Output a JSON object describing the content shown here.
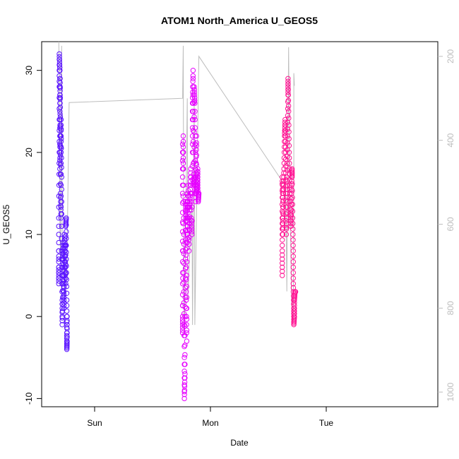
{
  "chart_data": {
    "type": "scatter",
    "title": "ATOM1 North_America U_GEOS5",
    "xlabel": "Date",
    "ylabel": "U_GEOS5",
    "x_ticks": [
      "Sun",
      "Mon",
      "Tue"
    ],
    "y_ticks": [
      "-10",
      "0",
      "10",
      "20",
      "30"
    ],
    "ylim": [
      -11,
      33.5
    ],
    "right_axis": {
      "ticks": [
        "200",
        "400",
        "600",
        "800",
        "1000"
      ],
      "range": [
        165,
        1035
      ],
      "inverted": true
    },
    "grid": false,
    "marker": "open-circle",
    "color_scale": [
      "#5a14ff",
      "#e600ff",
      "#ff1493"
    ],
    "series": [
      {
        "color": "#5a14ff",
        "points": [
          [
            -1.31,
            8
          ],
          [
            -1.31,
            4
          ],
          [
            -1.31,
            6
          ],
          [
            -1.31,
            12
          ],
          [
            -1.305,
            20
          ],
          [
            -1.305,
            28
          ],
          [
            -1.305,
            32
          ],
          [
            -1.3,
            30
          ],
          [
            -1.3,
            24
          ],
          [
            -1.3,
            18
          ],
          [
            -1.298,
            26
          ],
          [
            -1.298,
            29
          ],
          [
            -1.295,
            22
          ],
          [
            -1.295,
            15
          ],
          [
            -1.29,
            12
          ],
          [
            -1.29,
            20
          ],
          [
            -1.29,
            24
          ],
          [
            -1.285,
            17
          ],
          [
            -1.285,
            8
          ],
          [
            -1.28,
            2
          ],
          [
            -1.28,
            -1
          ],
          [
            -1.275,
            4
          ],
          [
            -1.275,
            7
          ],
          [
            -1.27,
            9
          ],
          [
            -1.27,
            5
          ],
          [
            -1.265,
            1
          ],
          [
            -1.265,
            3
          ],
          [
            -1.26,
            6
          ],
          [
            -1.26,
            10
          ],
          [
            -1.255,
            8
          ],
          [
            -1.25,
            4
          ],
          [
            -1.25,
            11
          ],
          [
            -1.245,
            12
          ],
          [
            -1.245,
            7
          ],
          [
            -1.24,
            2
          ],
          [
            -1.24,
            -2
          ],
          [
            -1.24,
            -4
          ],
          [
            -1.238,
            -3
          ],
          [
            -1.238,
            0
          ]
        ]
      },
      {
        "color": "#e600ff",
        "points": [
          [
            -0.24,
            21
          ],
          [
            -0.24,
            15
          ],
          [
            -0.24,
            8
          ],
          [
            -0.24,
            0
          ],
          [
            -0.24,
            -2
          ],
          [
            -0.235,
            18
          ],
          [
            -0.235,
            22
          ],
          [
            -0.23,
            10
          ],
          [
            -0.23,
            3
          ],
          [
            -0.225,
            -5
          ],
          [
            -0.225,
            -10
          ],
          [
            -0.22,
            -7
          ],
          [
            -0.22,
            0
          ],
          [
            -0.215,
            7
          ],
          [
            -0.215,
            14
          ],
          [
            -0.21,
            12
          ],
          [
            -0.21,
            3
          ],
          [
            -0.205,
            -3
          ],
          [
            -0.205,
            5
          ],
          [
            -0.2,
            15
          ],
          [
            -0.2,
            9
          ],
          [
            -0.195,
            12
          ],
          [
            -0.19,
            16
          ],
          [
            -0.185,
            8
          ],
          [
            -0.18,
            13
          ],
          [
            -0.175,
            15
          ],
          [
            -0.17,
            18
          ],
          [
            -0.165,
            12
          ],
          [
            -0.16,
            10
          ],
          [
            -0.155,
            20
          ],
          [
            -0.155,
            26
          ],
          [
            -0.15,
            30
          ],
          [
            -0.15,
            24
          ],
          [
            -0.145,
            16
          ],
          [
            -0.14,
            17
          ],
          [
            -0.14,
            28
          ],
          [
            -0.135,
            26
          ],
          [
            -0.13,
            20
          ],
          [
            -0.13,
            14
          ],
          [
            -0.125,
            17
          ],
          [
            -0.12,
            22
          ],
          [
            -0.12,
            15
          ],
          [
            -0.115,
            16
          ],
          [
            -0.11,
            18
          ],
          [
            -0.11,
            16
          ],
          [
            -0.105,
            14
          ],
          [
            -0.1,
            15
          ]
        ]
      },
      {
        "color": "#ff1493",
        "points": [
          [
            0.62,
            5
          ],
          [
            0.62,
            8
          ],
          [
            0.62,
            12
          ],
          [
            0.62,
            17
          ],
          [
            0.625,
            14
          ],
          [
            0.625,
            10
          ],
          [
            0.63,
            15
          ],
          [
            0.635,
            18
          ],
          [
            0.64,
            22
          ],
          [
            0.645,
            24
          ],
          [
            0.65,
            20
          ],
          [
            0.65,
            15
          ],
          [
            0.655,
            10
          ],
          [
            0.66,
            14
          ],
          [
            0.66,
            17
          ],
          [
            0.665,
            22
          ],
          [
            0.67,
            27
          ],
          [
            0.67,
            29
          ],
          [
            0.675,
            25
          ],
          [
            0.68,
            20
          ],
          [
            0.685,
            16
          ],
          [
            0.69,
            13
          ],
          [
            0.695,
            11
          ],
          [
            0.7,
            15
          ],
          [
            0.705,
            18
          ],
          [
            0.705,
            17
          ],
          [
            0.71,
            12
          ],
          [
            0.715,
            8
          ],
          [
            0.715,
            4
          ],
          [
            0.72,
            1
          ],
          [
            0.72,
            -1
          ],
          [
            0.725,
            0
          ],
          [
            0.725,
            2
          ],
          [
            0.73,
            3
          ],
          [
            0.735,
            3
          ]
        ]
      }
    ],
    "line": {
      "color": "#bdbdbd",
      "points": [
        [
          -1.31,
          165
        ],
        [
          -1.305,
          230
        ],
        [
          -1.3,
          590
        ],
        [
          -1.295,
          690
        ],
        [
          -1.285,
          175
        ],
        [
          -1.28,
          640
        ],
        [
          -1.26,
          780
        ],
        [
          -1.24,
          720
        ],
        [
          -1.22,
          310
        ],
        [
          -0.24,
          300
        ],
        [
          -0.235,
          175
        ],
        [
          -0.23,
          790
        ],
        [
          -0.225,
          860
        ],
        [
          -0.2,
          300
        ],
        [
          -0.195,
          780
        ],
        [
          -0.16,
          540
        ],
        [
          -0.155,
          840
        ],
        [
          -0.14,
          300
        ],
        [
          -0.135,
          840
        ],
        [
          -0.1,
          200
        ],
        [
          0.65,
          510
        ],
        [
          0.66,
          760
        ],
        [
          0.675,
          178
        ],
        [
          0.685,
          500
        ],
        [
          0.7,
          770
        ],
        [
          0.705,
          820
        ],
        [
          0.715,
          830
        ],
        [
          0.72,
          480
        ],
        [
          0.72,
          240
        ],
        [
          0.725,
          270
        ]
      ]
    }
  }
}
